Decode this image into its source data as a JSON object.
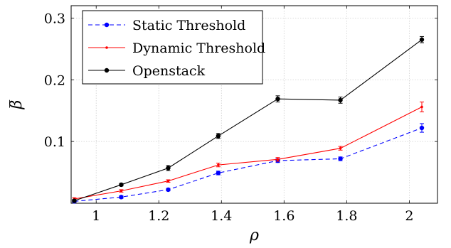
{
  "chart_data": {
    "type": "line",
    "xlabel": "ρ",
    "ylabel": "β̅",
    "xlim": [
      0.92,
      2.09
    ],
    "ylim": [
      0,
      0.32
    ],
    "xticks": [
      1,
      1.2,
      1.4,
      1.6,
      1.8,
      2
    ],
    "xtick_labels": [
      "1",
      "1.2",
      "1.4",
      "1.6",
      "1.8",
      "2"
    ],
    "yticks": [
      0.1,
      0.2,
      0.3
    ],
    "ytick_labels": [
      "0.1",
      "0.2",
      "0.3"
    ],
    "grid": true,
    "legend_position": "top-left",
    "series": [
      {
        "name": "Static Threshold",
        "color": "#0000ff",
        "dashed": true,
        "marker": "dot",
        "x": [
          0.93,
          1.08,
          1.23,
          1.39,
          1.58,
          1.78,
          2.04
        ],
        "y": [
          0.003,
          0.01,
          0.022,
          0.049,
          0.069,
          0.072,
          0.122
        ],
        "err": [
          0.002,
          0.002,
          0.002,
          0.003,
          0.003,
          0.003,
          0.007
        ]
      },
      {
        "name": "Dynamic Threshold",
        "color": "#ff0000",
        "dashed": false,
        "marker": "small-dot",
        "x": [
          0.93,
          1.08,
          1.23,
          1.39,
          1.58,
          1.78,
          2.04
        ],
        "y": [
          0.007,
          0.02,
          0.036,
          0.062,
          0.071,
          0.089,
          0.156
        ],
        "err": [
          0.002,
          0.002,
          0.002,
          0.003,
          0.003,
          0.003,
          0.008
        ]
      },
      {
        "name": "Openstack",
        "color": "#000000",
        "dashed": false,
        "marker": "dot",
        "x": [
          0.93,
          1.08,
          1.23,
          1.39,
          1.58,
          1.78,
          2.04
        ],
        "y": [
          0.004,
          0.03,
          0.057,
          0.109,
          0.169,
          0.167,
          0.265
        ],
        "err": [
          0.002,
          0.002,
          0.004,
          0.004,
          0.005,
          0.005,
          0.005
        ]
      }
    ]
  }
}
